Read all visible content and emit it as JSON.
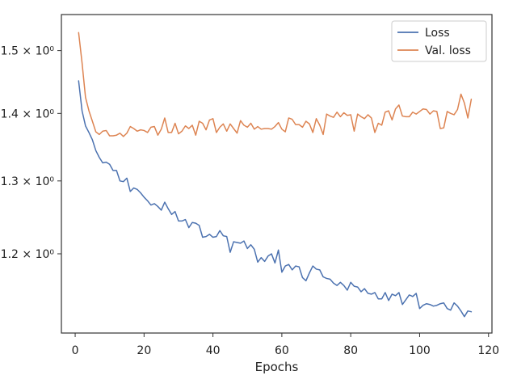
{
  "chart_data": {
    "type": "line",
    "xlabel": "Epochs",
    "ylabel": "",
    "yscale": "log",
    "xlim": [
      -4,
      121
    ],
    "ylim": [
      1.1,
      1.5606
    ],
    "x_ticks": [
      0,
      20,
      40,
      60,
      80,
      100,
      120
    ],
    "x_tick_labels": [
      "0",
      "20",
      "40",
      "60",
      "80",
      "100",
      "120"
    ],
    "y_ticks": [
      1.2,
      1.3,
      1.4,
      1.5
    ],
    "y_tick_labels": [
      "1.2 × 10⁰",
      "1.3 × 10⁰",
      "1.4 × 10⁰",
      "1.5 × 10⁰"
    ],
    "legend_position": "top-right",
    "grid": false,
    "series": [
      {
        "name": "Loss",
        "color": "#4c72b0",
        "x": [
          1,
          2,
          3,
          4,
          5,
          6,
          7,
          8,
          9,
          10,
          11,
          12,
          13,
          14,
          15,
          16,
          17,
          18,
          19,
          20,
          21,
          22,
          23,
          24,
          25,
          26,
          27,
          28,
          29,
          30,
          31,
          32,
          33,
          34,
          35,
          36,
          37,
          38,
          39,
          40,
          41,
          42,
          43,
          44,
          45,
          46,
          47,
          48,
          49,
          50,
          51,
          52,
          53,
          54,
          55,
          56,
          57,
          58,
          59,
          60,
          61,
          62,
          63,
          64,
          65,
          66,
          67,
          68,
          69,
          70,
          71,
          72,
          73,
          74,
          75,
          76,
          77,
          78,
          79,
          80,
          81,
          82,
          83,
          84,
          85,
          86,
          87,
          88,
          89,
          90,
          91,
          92,
          93,
          94,
          95,
          96,
          97,
          98,
          99,
          100,
          101,
          102,
          103,
          104,
          105,
          106,
          107,
          108,
          109,
          110,
          111,
          112,
          113,
          114,
          115
        ],
        "values": [
          1.451,
          1.404,
          1.381,
          1.371,
          1.36,
          1.344,
          1.334,
          1.326,
          1.327,
          1.324,
          1.315,
          1.315,
          1.3,
          1.299,
          1.304,
          1.285,
          1.29,
          1.288,
          1.283,
          1.277,
          1.272,
          1.266,
          1.268,
          1.264,
          1.259,
          1.27,
          1.261,
          1.253,
          1.257,
          1.244,
          1.244,
          1.246,
          1.235,
          1.242,
          1.241,
          1.238,
          1.222,
          1.223,
          1.226,
          1.222,
          1.223,
          1.231,
          1.224,
          1.223,
          1.202,
          1.216,
          1.215,
          1.214,
          1.217,
          1.207,
          1.212,
          1.206,
          1.189,
          1.195,
          1.19,
          1.197,
          1.2,
          1.188,
          1.205,
          1.176,
          1.184,
          1.186,
          1.179,
          1.184,
          1.183,
          1.169,
          1.165,
          1.175,
          1.184,
          1.18,
          1.179,
          1.17,
          1.168,
          1.167,
          1.162,
          1.159,
          1.163,
          1.159,
          1.153,
          1.163,
          1.158,
          1.157,
          1.151,
          1.155,
          1.149,
          1.148,
          1.15,
          1.142,
          1.142,
          1.15,
          1.14,
          1.148,
          1.146,
          1.15,
          1.135,
          1.141,
          1.147,
          1.145,
          1.149,
          1.13,
          1.134,
          1.136,
          1.135,
          1.133,
          1.134,
          1.136,
          1.137,
          1.13,
          1.128,
          1.137,
          1.133,
          1.127,
          1.12,
          1.127,
          1.126
        ]
      },
      {
        "name": "Val. loss",
        "color": "#dd8452",
        "x": [
          1,
          2,
          3,
          4,
          5,
          6,
          7,
          8,
          9,
          10,
          11,
          12,
          13,
          14,
          15,
          16,
          17,
          18,
          19,
          20,
          21,
          22,
          23,
          24,
          25,
          26,
          27,
          28,
          29,
          30,
          31,
          32,
          33,
          34,
          35,
          36,
          37,
          38,
          39,
          40,
          41,
          42,
          43,
          44,
          45,
          46,
          47,
          48,
          49,
          50,
          51,
          52,
          53,
          54,
          55,
          56,
          57,
          58,
          59,
          60,
          61,
          62,
          63,
          64,
          65,
          66,
          67,
          68,
          69,
          70,
          71,
          72,
          73,
          74,
          75,
          76,
          77,
          78,
          79,
          80,
          81,
          82,
          83,
          84,
          85,
          86,
          87,
          88,
          89,
          90,
          91,
          92,
          93,
          94,
          95,
          96,
          97,
          98,
          99,
          100,
          101,
          102,
          103,
          104,
          105,
          106,
          107,
          108,
          109,
          110,
          111,
          112,
          113,
          114,
          115
        ],
        "values": [
          1.53,
          1.48,
          1.425,
          1.404,
          1.388,
          1.372,
          1.368,
          1.373,
          1.374,
          1.366,
          1.366,
          1.367,
          1.37,
          1.365,
          1.37,
          1.38,
          1.377,
          1.373,
          1.375,
          1.374,
          1.371,
          1.379,
          1.38,
          1.367,
          1.376,
          1.393,
          1.371,
          1.371,
          1.385,
          1.369,
          1.373,
          1.381,
          1.377,
          1.382,
          1.367,
          1.388,
          1.385,
          1.375,
          1.39,
          1.392,
          1.371,
          1.379,
          1.384,
          1.373,
          1.384,
          1.377,
          1.37,
          1.389,
          1.382,
          1.379,
          1.385,
          1.376,
          1.38,
          1.376,
          1.377,
          1.377,
          1.376,
          1.38,
          1.386,
          1.376,
          1.372,
          1.393,
          1.391,
          1.383,
          1.383,
          1.379,
          1.388,
          1.384,
          1.371,
          1.392,
          1.382,
          1.368,
          1.399,
          1.396,
          1.394,
          1.402,
          1.395,
          1.401,
          1.397,
          1.398,
          1.373,
          1.399,
          1.395,
          1.392,
          1.398,
          1.393,
          1.371,
          1.385,
          1.382,
          1.402,
          1.404,
          1.39,
          1.407,
          1.413,
          1.396,
          1.395,
          1.395,
          1.402,
          1.399,
          1.403,
          1.407,
          1.406,
          1.399,
          1.404,
          1.403,
          1.377,
          1.378,
          1.403,
          1.4,
          1.398,
          1.406,
          1.43,
          1.416,
          1.393,
          1.422
        ]
      }
    ]
  }
}
